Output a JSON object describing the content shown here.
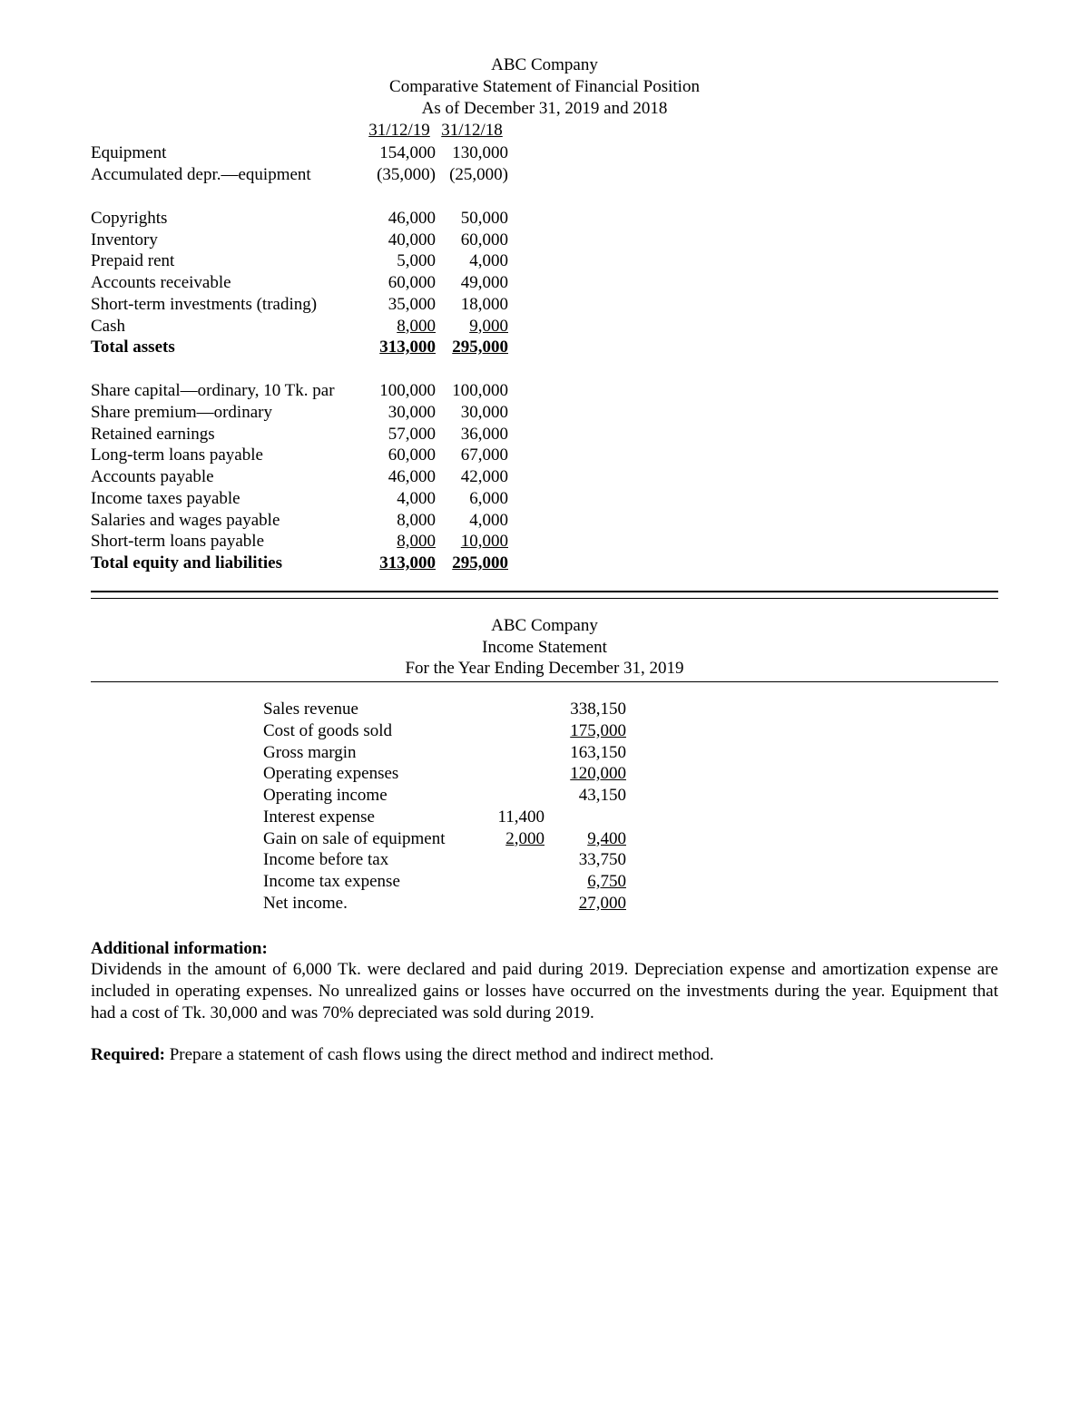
{
  "bs": {
    "company": "ABC Company",
    "title": "Comparative Statement of Financial Position",
    "asof": "As of December 31, 2019 and 2018",
    "col1": "31/12/19",
    "col2": "31/12/18",
    "rows1": [
      {
        "label": "Equipment",
        "v1": "154,000",
        "v2": "130,000"
      },
      {
        "label": "Accumulated depr.—equipment",
        "v1": "(35,000)",
        "v2": "(25,000)"
      }
    ],
    "rows2": [
      {
        "label": "Copyrights",
        "v1": "46,000",
        "v2": "50,000"
      },
      {
        "label": "Inventory",
        "v1": "40,000",
        "v2": "60,000"
      },
      {
        "label": "Prepaid rent",
        "v1": "5,000",
        "v2": "4,000"
      },
      {
        "label": "Accounts receivable",
        "v1": "60,000",
        "v2": "49,000"
      },
      {
        "label": "Short-term investments (trading)",
        "v1": "35,000",
        "v2": "18,000"
      },
      {
        "label": "Cash",
        "v1": "8,000",
        "v2": "9,000",
        "ul": true
      }
    ],
    "total_assets": {
      "label": "Total assets",
      "v1": "313,000",
      "v2": "295,000"
    },
    "rows3": [
      {
        "label": "Share capital—ordinary, 10 Tk. par",
        "v1": "100,000",
        "v2": "100,000"
      },
      {
        "label": "Share premium—ordinary",
        "v1": "30,000",
        "v2": "30,000"
      },
      {
        "label": "Retained earnings",
        "v1": "57,000",
        "v2": "36,000"
      },
      {
        "label": "Long-term loans payable",
        "v1": "60,000",
        "v2": "67,000"
      },
      {
        "label": "Accounts payable",
        "v1": "46,000",
        "v2": "42,000"
      },
      {
        "label": "Income taxes payable",
        "v1": "4,000",
        "v2": "6,000"
      },
      {
        "label": "Salaries and wages payable",
        "v1": "8,000",
        "v2": "4,000"
      },
      {
        "label": "Short-term loans payable",
        "v1": "8,000",
        "v2": "10,000",
        "ul": true
      }
    ],
    "total_el": {
      "label": "Total equity and liabilities",
      "v1": "313,000",
      "v2": "295,000"
    }
  },
  "is": {
    "company": "ABC Company",
    "title": "Income Statement",
    "period": "For the Year Ending December 31, 2019",
    "rows": [
      {
        "label": "Sales revenue",
        "mid": "",
        "val": "338,150"
      },
      {
        "label": "Cost of goods sold",
        "mid": "",
        "val": "175,000",
        "ul_val": true
      },
      {
        "label": "Gross margin",
        "mid": "",
        "val": "163,150"
      },
      {
        "label": "Operating expenses",
        "mid": "",
        "val": "120,000",
        "ul_val": true
      },
      {
        "label": "Operating income",
        "mid": "",
        "val": "43,150"
      },
      {
        "label": "Interest expense",
        "mid": "11,400",
        "val": ""
      },
      {
        "label": "Gain on sale of equipment",
        "mid": "2,000",
        "val": "9,400",
        "ul_mid": true,
        "ul_val": true
      },
      {
        "label": "Income before tax",
        "mid": "",
        "val": "33,750"
      },
      {
        "label": "Income tax expense",
        "mid": "",
        "val": "6,750",
        "ul_val": true
      },
      {
        "label": "Net income.",
        "mid": "",
        "val": "27,000",
        "ul_val": true
      }
    ]
  },
  "addl": {
    "heading": "Additional information:",
    "text": "Dividends in the amount of 6,000 Tk. were declared and paid during 2019. Depreciation expense and amortization expense are included in operating expenses. No unrealized gains or losses have occurred on the investments during the year. Equipment that had a cost of Tk. 30,000 and was 70% depreciated was sold during 2019."
  },
  "req": {
    "heading": "Required:",
    "text": " Prepare a statement of cash flows using the direct method and indirect method."
  }
}
